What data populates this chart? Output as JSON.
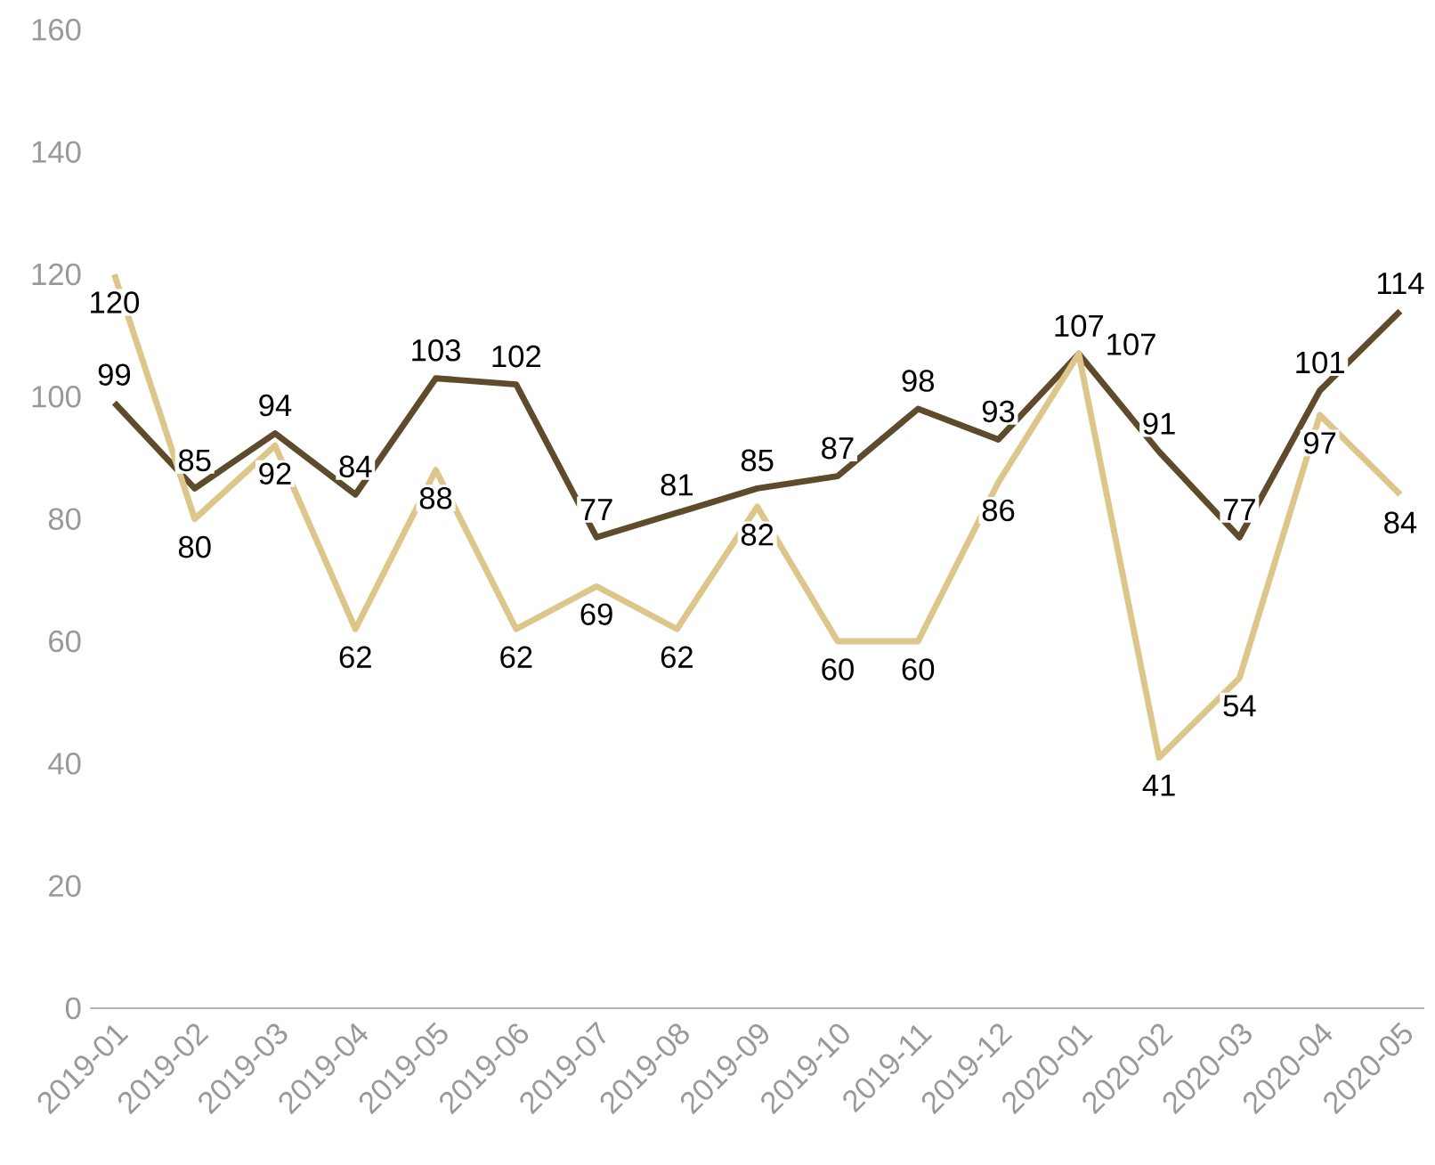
{
  "chart_data": {
    "type": "line",
    "categories": [
      "2019-01",
      "2019-02",
      "2019-03",
      "2019-04",
      "2019-05",
      "2019-06",
      "2019-07",
      "2019-08",
      "2019-09",
      "2019-10",
      "2019-11",
      "2019-12",
      "2020-01",
      "2020-02",
      "2020-03",
      "2020-04",
      "2020-05"
    ],
    "series": [
      {
        "color": "#5e4b2b",
        "values": [
          99,
          85,
          94,
          84,
          103,
          102,
          77,
          81,
          85,
          87,
          98,
          93,
          107,
          91,
          77,
          101,
          114
        ]
      },
      {
        "color": "#dcc689",
        "values": [
          120,
          80,
          92,
          62,
          88,
          62,
          69,
          62,
          82,
          60,
          60,
          86,
          107,
          41,
          54,
          97,
          84
        ]
      }
    ],
    "ylim": [
      0,
      160
    ],
    "yticks": [
      0,
      20,
      40,
      60,
      80,
      100,
      120,
      140,
      160
    ],
    "grid": false,
    "marker": "none",
    "line_style": "solid",
    "data_labels": true
  }
}
